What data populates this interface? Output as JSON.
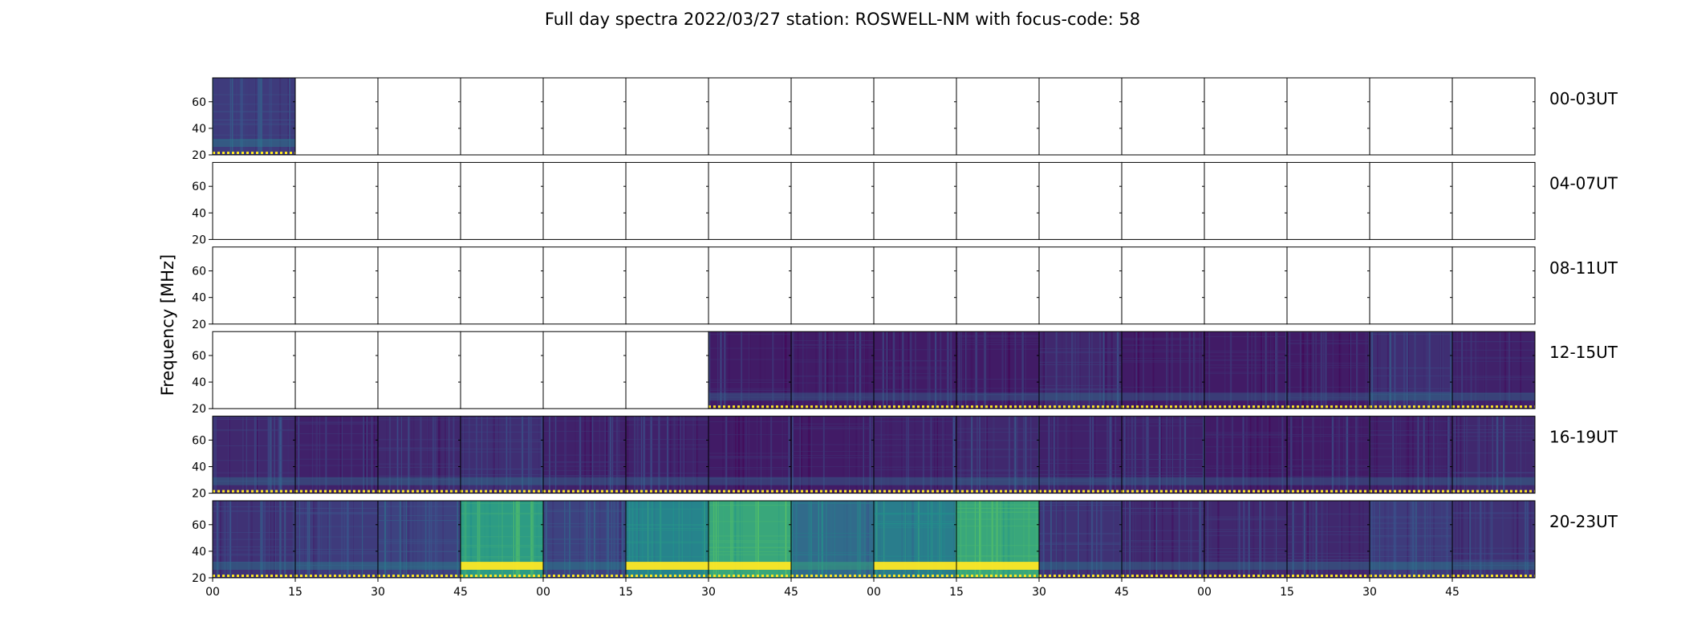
{
  "title": "Full day spectra 2022/03/27 station: ROSWELL-NM with focus-code: 58",
  "chart_data": {
    "type": "heatmap",
    "title": "Full day spectra 2022/03/27 station: ROSWELL-NM with focus-code: 58",
    "ylabel": "Frequency [MHz]",
    "xlabel": "",
    "ylim": [
      20,
      78
    ],
    "y_ticks": [
      "20",
      "40",
      "60"
    ],
    "x_ticks": [
      "00",
      "15",
      "30",
      "45",
      "00",
      "15",
      "30",
      "45",
      "00",
      "15",
      "30",
      "45",
      "00",
      "15",
      "30",
      "45"
    ],
    "panels_per_row": 16,
    "panel_minutes": 15,
    "colormap": "viridis",
    "rows": [
      {
        "label": "00-03UT",
        "intensity": [
          0.18,
          null,
          null,
          null,
          null,
          null,
          null,
          null,
          null,
          null,
          null,
          null,
          null,
          null,
          null,
          null
        ]
      },
      {
        "label": "04-07UT",
        "intensity": [
          null,
          null,
          null,
          null,
          null,
          null,
          null,
          null,
          null,
          null,
          null,
          null,
          null,
          null,
          null,
          null
        ]
      },
      {
        "label": "08-11UT",
        "intensity": [
          null,
          null,
          null,
          null,
          null,
          null,
          null,
          null,
          null,
          null,
          null,
          null,
          null,
          null,
          null,
          null
        ]
      },
      {
        "label": "12-15UT",
        "intensity": [
          null,
          null,
          null,
          null,
          null,
          null,
          0.08,
          0.08,
          0.08,
          0.08,
          0.12,
          0.08,
          0.08,
          0.08,
          0.14,
          0.1
        ]
      },
      {
        "label": "16-19UT",
        "intensity": [
          0.12,
          0.1,
          0.12,
          0.14,
          0.1,
          0.1,
          0.08,
          0.08,
          0.1,
          0.12,
          0.1,
          0.1,
          0.08,
          0.08,
          0.1,
          0.12
        ]
      },
      {
        "label": "20-23UT",
        "intensity": [
          0.15,
          0.18,
          0.2,
          0.55,
          0.2,
          0.45,
          0.6,
          0.35,
          0.42,
          0.6,
          0.15,
          0.12,
          0.12,
          0.12,
          0.18,
          0.15
        ]
      }
    ]
  }
}
